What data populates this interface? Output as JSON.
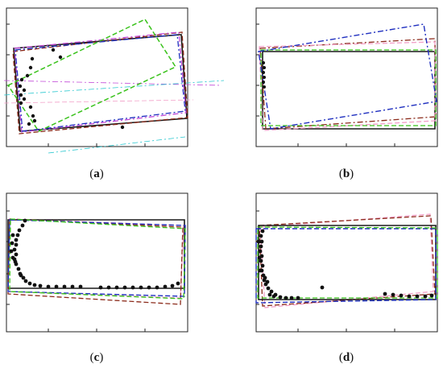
{
  "figure": {
    "panels": [
      {
        "id": "a",
        "caption": "(a)"
      },
      {
        "id": "b",
        "caption": "(b)"
      },
      {
        "id": "c",
        "caption": "(c)"
      },
      {
        "id": "d",
        "caption": "(d)"
      }
    ],
    "colors": {
      "black": "#1a1a1a",
      "brown": "#8b2a1a",
      "blue": "#1f2fbf",
      "green": "#39c21b",
      "magenta": "#c24ad8",
      "cyan": "#29c7cf",
      "pink": "#f2a0c8",
      "points": "#111111"
    }
  }
}
